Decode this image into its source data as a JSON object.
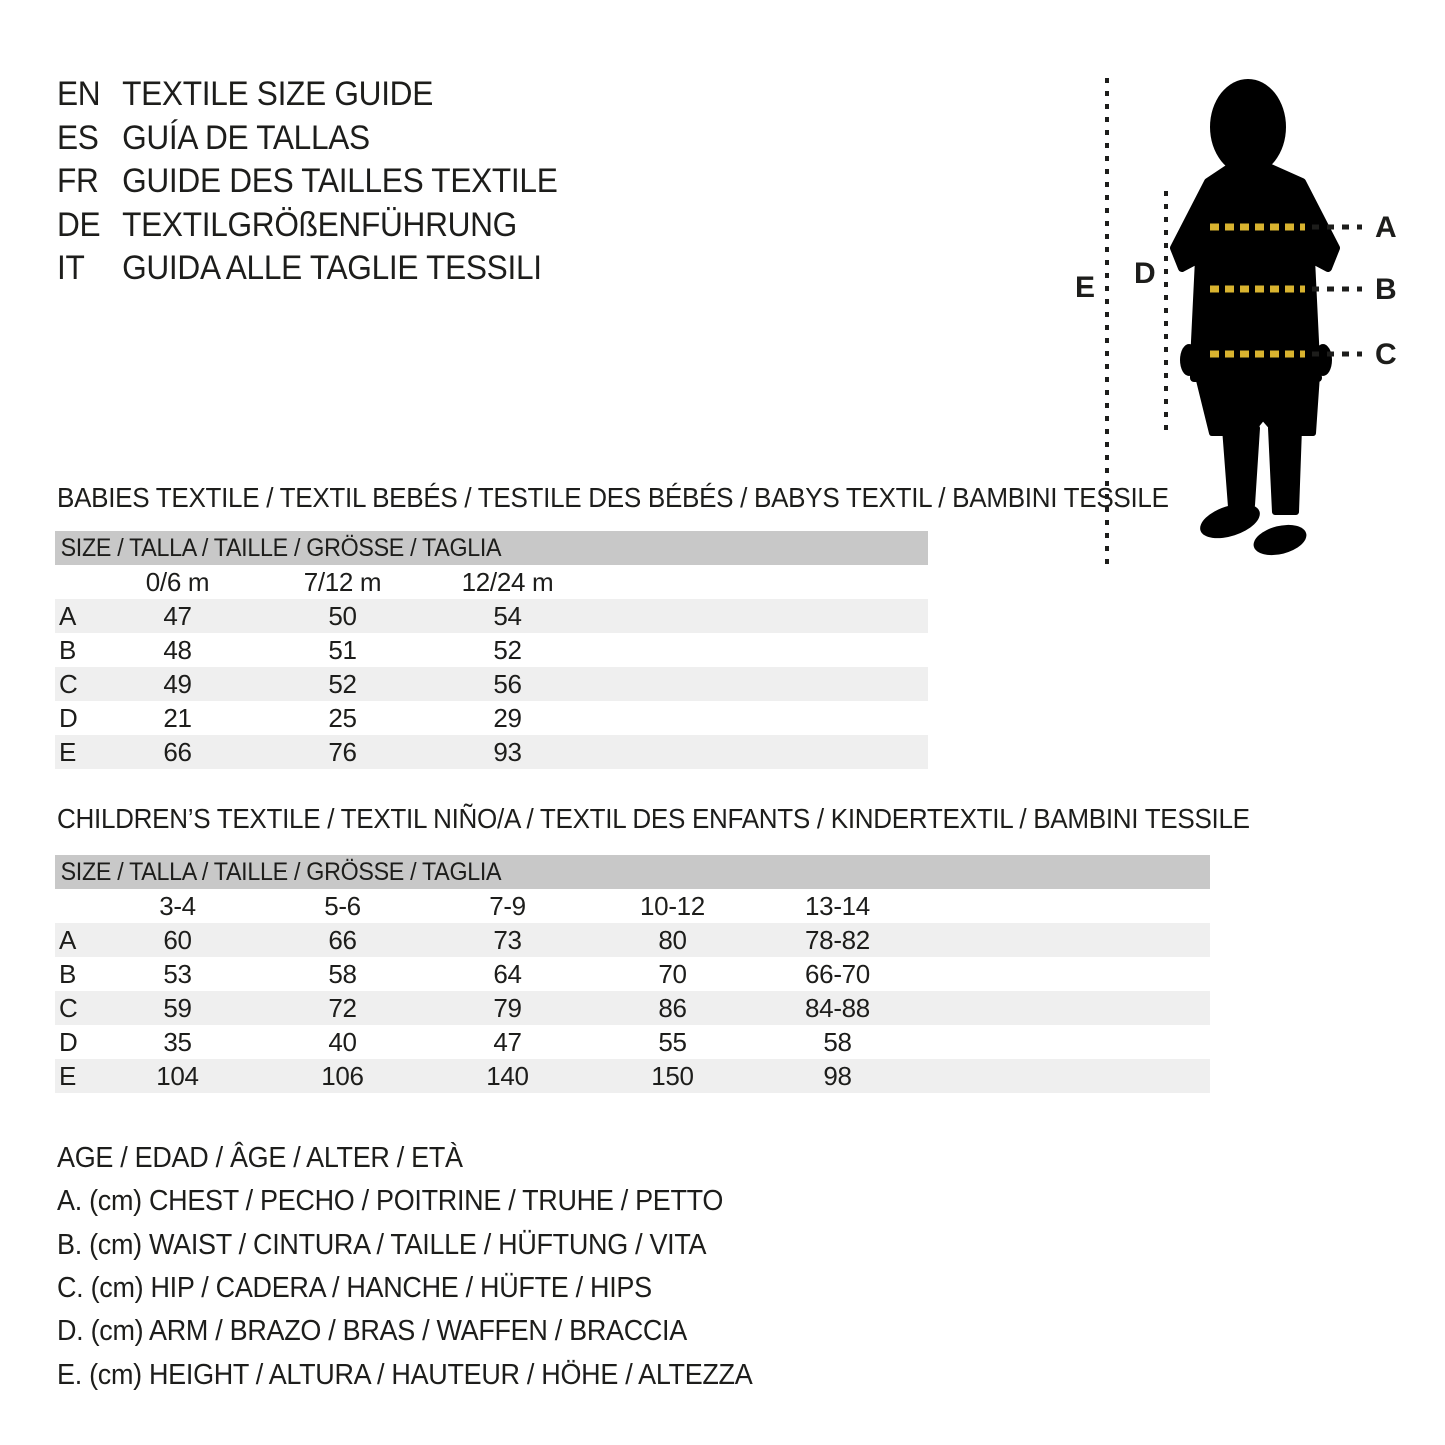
{
  "page": {
    "background": "#ffffff",
    "text_color": "#1d1d1b",
    "table_header_bg": "#c8c8c8",
    "row_stripe_bg": "#efefef",
    "silhouette_color": "#000000",
    "dash_yellow": "#d9b32f",
    "dash_black": "#1d1d1b"
  },
  "header": {
    "lines": [
      {
        "lang": "EN",
        "title": "TEXTILE SIZE GUIDE"
      },
      {
        "lang": "ES",
        "title": "GUÍA DE TALLAS"
      },
      {
        "lang": "FR",
        "title": "GUIDE DES TAILLES TEXTILE"
      },
      {
        "lang": "DE",
        "title": "TEXTILGRÖßENFÜHRUNG"
      },
      {
        "lang": "IT",
        "title": "GUIDA ALLE TAGLIE TESSILI"
      }
    ]
  },
  "figure": {
    "labels": {
      "chest": "A",
      "waist": "B",
      "hip": "C",
      "arm": "D",
      "height": "E"
    }
  },
  "babies_table": {
    "section_title": "BABIES TEXTILE / TEXTIL BEBÉS / TESTILE DES BÉBÉS / BABYS TEXTIL / BAMBINI TESSILE",
    "header": "SIZE / TALLA / TAILLE / GRÖSSE / TAGLIA",
    "columns": [
      "0/6 m",
      "7/12 m",
      "12/24 m"
    ],
    "rows": [
      {
        "label": "A",
        "values": [
          "47",
          "50",
          "54"
        ]
      },
      {
        "label": "B",
        "values": [
          "48",
          "51",
          "52"
        ]
      },
      {
        "label": "C",
        "values": [
          "49",
          "52",
          "56"
        ]
      },
      {
        "label": "D",
        "values": [
          "21",
          "25",
          "29"
        ]
      },
      {
        "label": "E",
        "values": [
          "66",
          "76",
          "93"
        ]
      }
    ]
  },
  "children_table": {
    "section_title": "CHILDREN’S TEXTILE / TEXTIL NIÑO/A / TEXTIL DES ENFANTS / KINDERTEXTIL / BAMBINI TESSILE",
    "header": "SIZE / TALLA / TAILLE / GRÖSSE / TAGLIA",
    "columns": [
      "3-4",
      "5-6",
      "7-9",
      "10-12",
      "13-14"
    ],
    "rows": [
      {
        "label": "A",
        "values": [
          "60",
          "66",
          "73",
          "80",
          "78-82"
        ]
      },
      {
        "label": "B",
        "values": [
          "53",
          "58",
          "64",
          "70",
          "66-70"
        ]
      },
      {
        "label": "C",
        "values": [
          "59",
          "72",
          "79",
          "86",
          "84-88"
        ]
      },
      {
        "label": "D",
        "values": [
          "35",
          "40",
          "47",
          "55",
          "58"
        ]
      },
      {
        "label": "E",
        "values": [
          "104",
          "106",
          "140",
          "150",
          "98"
        ]
      }
    ]
  },
  "legend": {
    "lines": [
      "AGE / EDAD / ÂGE / ALTER / ETÀ",
      "A. (cm) CHEST / PECHO / POITRINE / TRUHE / PETTO",
      "B. (cm) WAIST / CINTURA / TAILLE / HÜFTUNG / VITA",
      "C. (cm) HIP / CADERA / HANCHE / HÜFTE / HIPS",
      "D. (cm) ARM / BRAZO / BRAS / WAFFEN / BRACCIA",
      "E. (cm) HEIGHT / ALTURA / HAUTEUR / HÖHE / ALTEZZA"
    ]
  }
}
